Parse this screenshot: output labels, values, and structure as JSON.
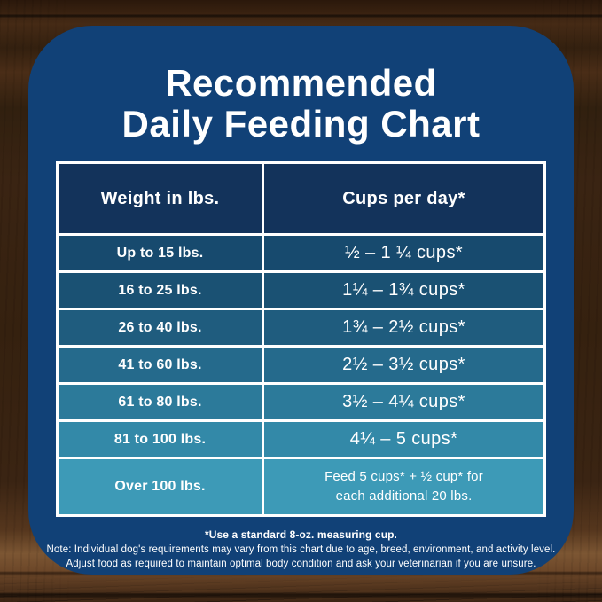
{
  "title": {
    "line1": "Recommended",
    "line2": "Daily Feeding Chart"
  },
  "table": {
    "headers": {
      "weight": "Weight in lbs.",
      "cups": "Cups per day*"
    },
    "rows": [
      {
        "weight": "Up to 15 lbs.",
        "cups": "½ – 1 ¼ cups*"
      },
      {
        "weight": "16 to 25 lbs.",
        "cups": "1¼ – 1¾  cups*"
      },
      {
        "weight": "26 to 40 lbs.",
        "cups": "1¾ – 2½ cups*"
      },
      {
        "weight": "41 to 60 lbs.",
        "cups": "2½ – 3½ cups*"
      },
      {
        "weight": "61 to 80 lbs.",
        "cups": "3½ – 4¼ cups*"
      },
      {
        "weight": "81 to 100 lbs.",
        "cups": "4¼ – 5 cups*"
      },
      {
        "weight": "Over 100 lbs.",
        "cups_line1": "Feed 5 cups* + ½ cup* for",
        "cups_line2": "each additional 20 lbs."
      }
    ]
  },
  "notes": {
    "line1": "*Use a standard 8-oz. measuring cup.",
    "line2": "Note: Individual dog's requirements may vary from this chart due to age, breed, environment, and activity level.",
    "line3": "Adjust food as required to maintain optimal body condition and ask your veterinarian if you are unsure."
  },
  "colors": {
    "card": "#114177",
    "header_cell": "#13335b",
    "border": "#ffffff",
    "text": "#ffffff",
    "wood_base": "#3a2413",
    "row_gradient": [
      "#174a6e",
      "#1a5173",
      "#1f5c7e",
      "#256a8c",
      "#2c7a9a",
      "#3389a8",
      "#3d9ab7"
    ]
  },
  "chart_data": {
    "type": "table",
    "title": "Recommended Daily Feeding Chart",
    "columns": [
      "Weight in lbs.",
      "Cups per day*"
    ],
    "rows": [
      [
        "Up to 15 lbs.",
        "½ – 1 ¼ cups*"
      ],
      [
        "16 to 25 lbs.",
        "1¼ – 1¾ cups*"
      ],
      [
        "26 to 40 lbs.",
        "1¾ – 2½ cups*"
      ],
      [
        "41 to 60 lbs.",
        "2½ – 3½ cups*"
      ],
      [
        "61 to 80 lbs.",
        "3½ – 4¼ cups*"
      ],
      [
        "81 to 100 lbs.",
        "4¼ – 5 cups*"
      ],
      [
        "Over 100 lbs.",
        "Feed 5 cups* + ½ cup* for each additional 20 lbs."
      ]
    ],
    "notes": [
      "*Use a standard 8-oz. measuring cup.",
      "Note: Individual dog's requirements may vary from this chart due to age, breed, environment, and activity level.",
      "Adjust food as required to maintain optimal body condition and ask your veterinarian if you are unsure."
    ]
  }
}
